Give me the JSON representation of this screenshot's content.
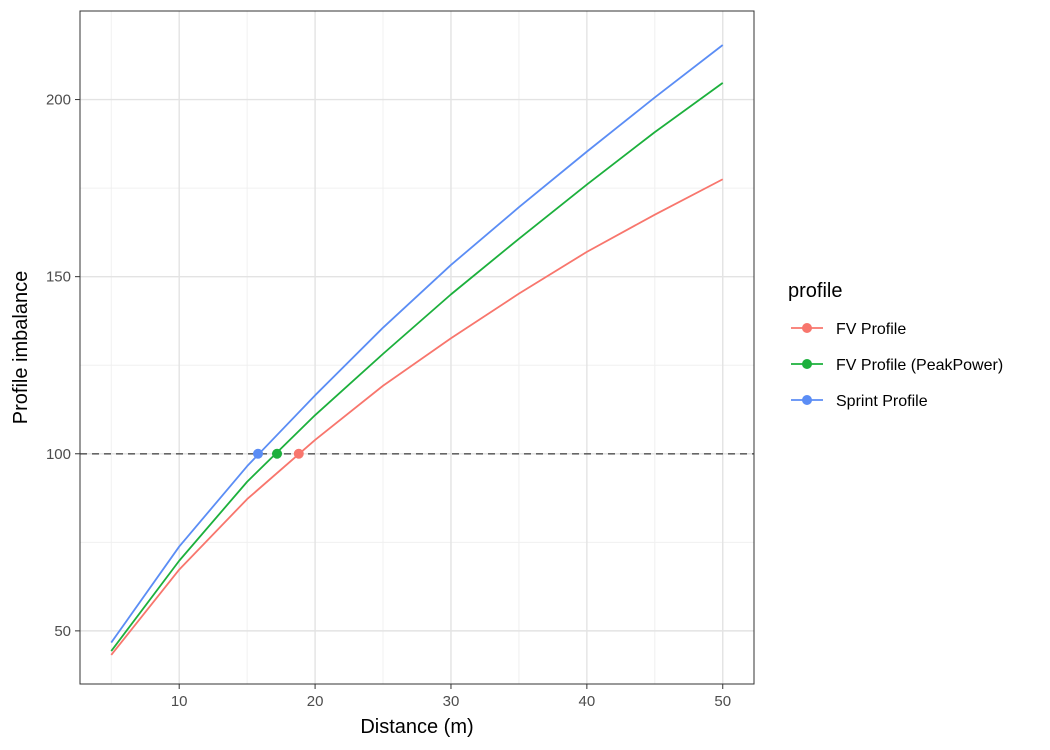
{
  "chart_data": {
    "type": "line",
    "xlabel": "Distance (m)",
    "ylabel": "Profile imbalance",
    "xlim": [
      2.7,
      52.3
    ],
    "ylim": [
      35,
      225
    ],
    "x_ticks": [
      10,
      20,
      30,
      40,
      50
    ],
    "y_ticks": [
      50,
      100,
      150,
      200
    ],
    "grid": true,
    "legend": {
      "title": "profile",
      "position": "right"
    },
    "reference_line": {
      "y": 100,
      "style": "dashed",
      "color": "#666666"
    },
    "x": [
      5,
      10,
      15,
      20,
      25,
      30,
      35,
      40,
      45,
      50
    ],
    "series": [
      {
        "name": "FV Profile",
        "color": "#F8766D",
        "values": [
          43.2,
          67.3,
          87.2,
          103.9,
          119.2,
          132.6,
          145.2,
          157.0,
          167.5,
          177.5
        ],
        "crossing": {
          "x": 18.8,
          "y": 100
        }
      },
      {
        "name": "FV Profile (PeakPower)",
        "color": "#1CB03C",
        "values": [
          44.3,
          69.8,
          92.1,
          110.9,
          128.2,
          145.0,
          160.7,
          176.0,
          190.8,
          204.7
        ],
        "crossing": {
          "x": 17.2,
          "y": 100
        }
      },
      {
        "name": "Sprint Profile",
        "color": "#5B8DF5",
        "values": [
          46.7,
          73.8,
          96.5,
          116.5,
          135.6,
          153.3,
          169.6,
          185.3,
          200.6,
          215.4
        ],
        "crossing": {
          "x": 15.8,
          "y": 100
        }
      }
    ]
  }
}
